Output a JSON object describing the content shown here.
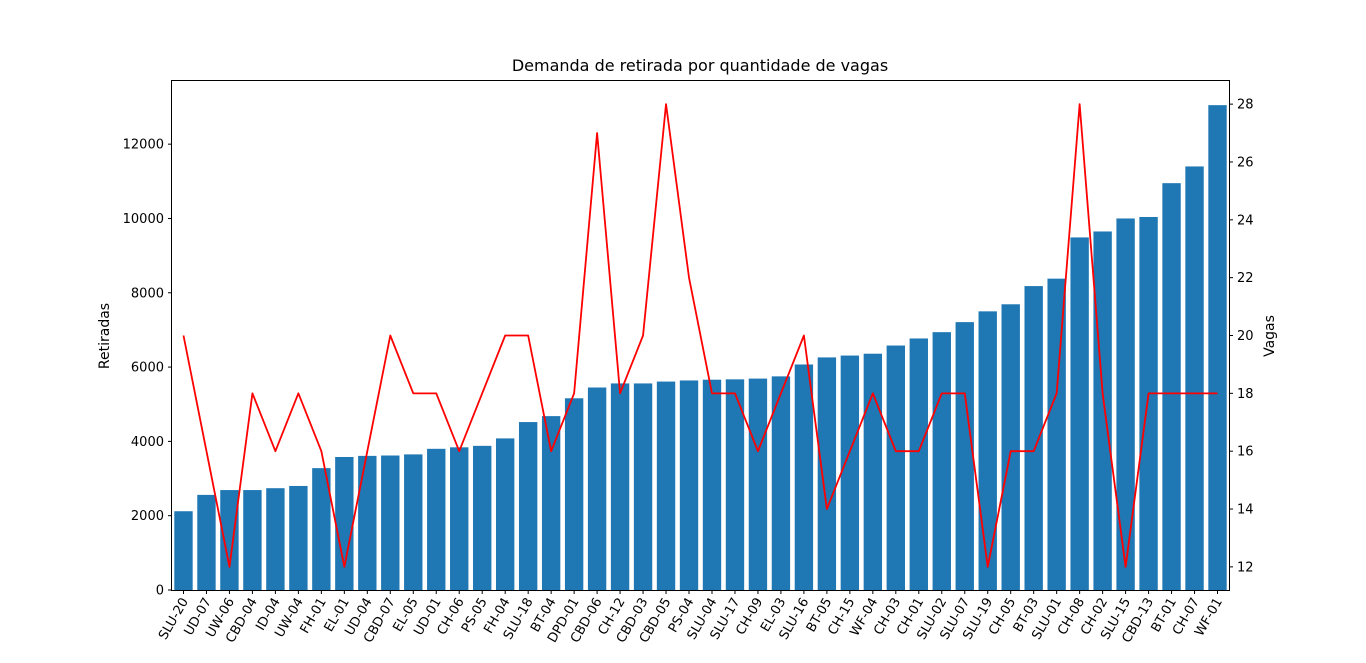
{
  "chart_data": {
    "type": "bar",
    "title": "Demanda de retirada por quantidade de vagas",
    "xlabel": "",
    "ylabel": "Retiradas",
    "y2label": "Vagas",
    "ylabel_color": "#0000ff",
    "y2label_color": "#ff0000",
    "bar_color": "#1f77b4",
    "line_color": "#ff0000",
    "ylim": [
      0,
      13700
    ],
    "y2lim": [
      11.2,
      28.8
    ],
    "yticks": [
      0,
      2000,
      4000,
      6000,
      8000,
      10000,
      12000
    ],
    "y2ticks": [
      12,
      14,
      16,
      18,
      20,
      22,
      24,
      26,
      28
    ],
    "grid": false,
    "categories": [
      "SLU-20",
      "UD-07",
      "UW-06",
      "CBD-04",
      "ID-04",
      "UW-04",
      "FH-01",
      "EL-01",
      "UD-04",
      "CBD-07",
      "EL-05",
      "UD-01",
      "CH-06",
      "PS-05",
      "FH-04",
      "SLU-18",
      "BT-04",
      "DPD-01",
      "CBD-06",
      "CH-12",
      "CBD-03",
      "CBD-05",
      "PS-04",
      "SLU-04",
      "SLU-17",
      "CH-09",
      "EL-03",
      "SLU-16",
      "BT-05",
      "CH-15",
      "WF-04",
      "CH-03",
      "CH-01",
      "SLU-02",
      "SLU-07",
      "SLU-19",
      "CH-05",
      "BT-03",
      "SLU-01",
      "CH-08",
      "CH-02",
      "SLU-15",
      "CBD-13",
      "BT-01",
      "CH-07",
      "WF-01"
    ],
    "series": [
      {
        "type": "bar",
        "axis": "left",
        "values": [
          2120,
          2560,
          2690,
          2690,
          2740,
          2800,
          3280,
          3580,
          3610,
          3620,
          3650,
          3800,
          3840,
          3880,
          4080,
          4520,
          4680,
          5160,
          5450,
          5560,
          5560,
          5610,
          5640,
          5660,
          5670,
          5690,
          5750,
          6070,
          6260,
          6310,
          6360,
          6580,
          6770,
          6940,
          7210,
          7500,
          7690,
          8180,
          8380,
          9490,
          9650,
          10000,
          10040,
          10950,
          11400,
          13050
        ]
      },
      {
        "type": "line",
        "axis": "right",
        "values": [
          20,
          16,
          12,
          18,
          16,
          18,
          16,
          12,
          16,
          20,
          18,
          18,
          16,
          18,
          20,
          20,
          16,
          18,
          27,
          18,
          20,
          28,
          22,
          18,
          18,
          16,
          18,
          20,
          14,
          16,
          18,
          16,
          16,
          18,
          18,
          12,
          16,
          16,
          18,
          28,
          18,
          12,
          18,
          18,
          18,
          18
        ]
      }
    ]
  }
}
